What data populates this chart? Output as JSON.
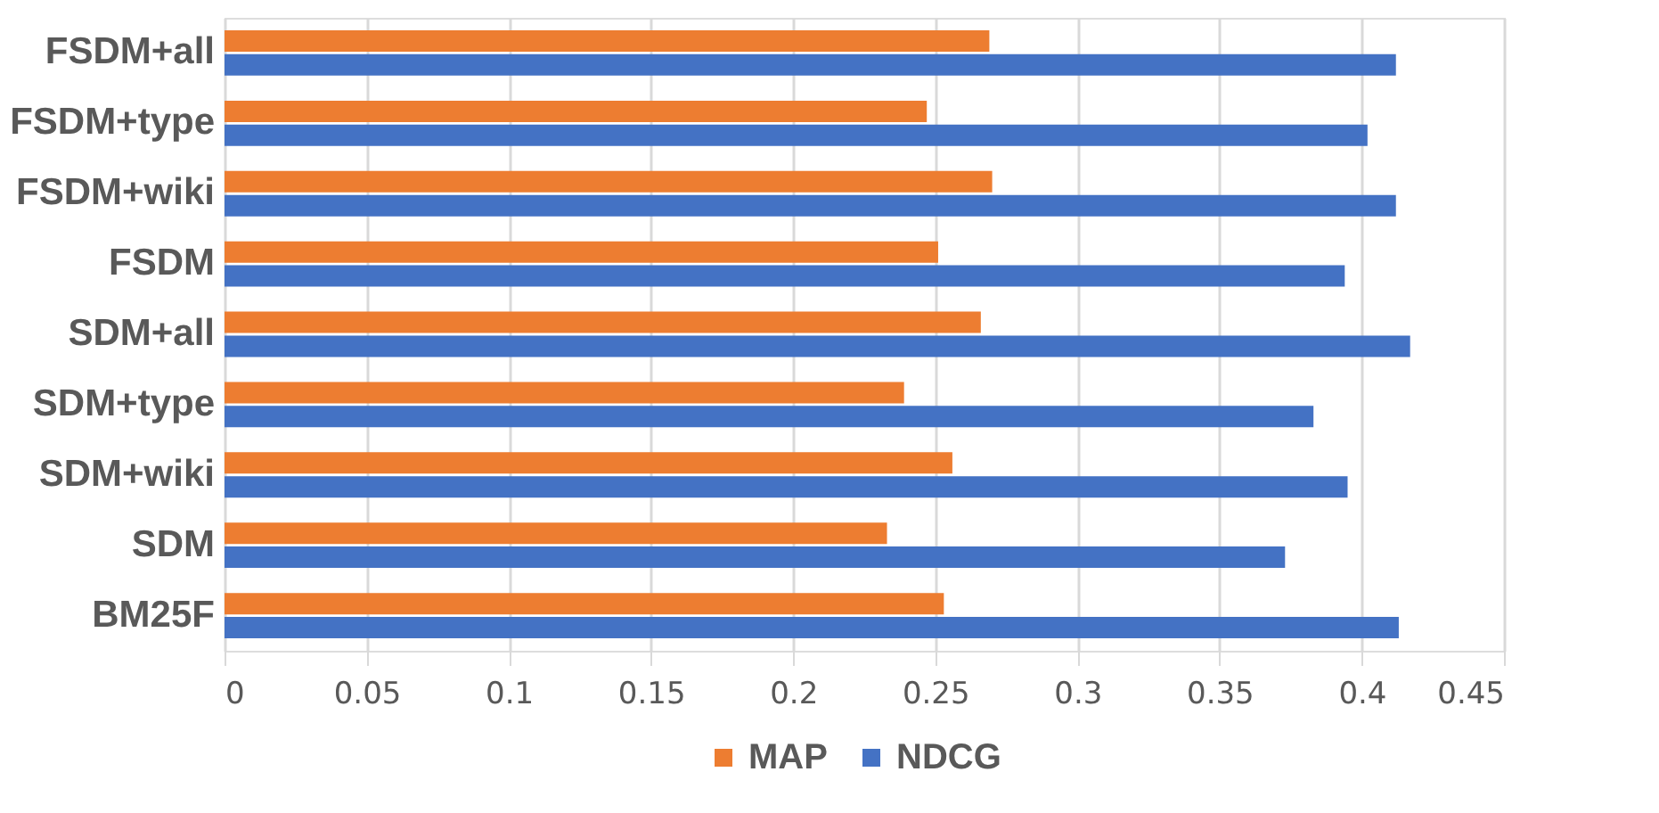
{
  "chart_data": {
    "type": "bar",
    "orientation": "horizontal",
    "categories": [
      "FSDM+all",
      "FSDM+type",
      "FSDM+wiki",
      "FSDM",
      "SDM+all",
      "SDM+type",
      "SDM+wiki",
      "SDM",
      "BM25F"
    ],
    "series": [
      {
        "name": "MAP",
        "color": "#ed7d31",
        "values": [
          0.269,
          0.247,
          0.27,
          0.251,
          0.266,
          0.239,
          0.256,
          0.233,
          0.253
        ]
      },
      {
        "name": "NDCG",
        "color": "#4472c4",
        "values": [
          0.412,
          0.402,
          0.412,
          0.394,
          0.417,
          0.383,
          0.395,
          0.373,
          0.413
        ]
      }
    ],
    "xlim": [
      0,
      0.45
    ],
    "xticks": [
      0,
      0.05,
      0.1,
      0.15,
      0.2,
      0.25,
      0.3,
      0.35,
      0.4,
      0.45
    ],
    "grid": "x",
    "legend": "bottom"
  }
}
